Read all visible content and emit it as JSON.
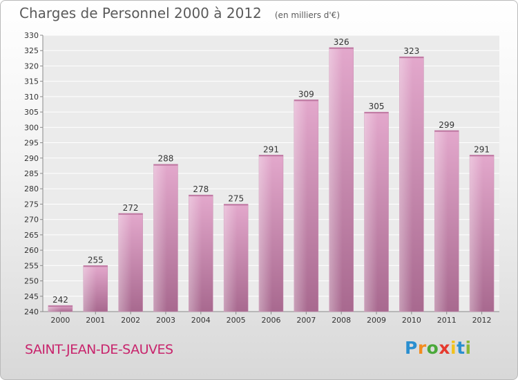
{
  "chart_data": {
    "type": "bar",
    "title": "Charges de Personnel 2000 à 2012",
    "subtitle": "(en milliers d'€)",
    "categories": [
      "2000",
      "2001",
      "2002",
      "2003",
      "2004",
      "2005",
      "2006",
      "2007",
      "2008",
      "2009",
      "2010",
      "2011",
      "2012"
    ],
    "values": [
      242,
      255,
      272,
      288,
      278,
      275,
      291,
      309,
      326,
      305,
      323,
      299,
      291
    ],
    "ylim": [
      240,
      330
    ],
    "yticks": [
      240,
      245,
      250,
      255,
      260,
      265,
      270,
      275,
      280,
      285,
      290,
      295,
      300,
      305,
      310,
      315,
      320,
      325,
      330
    ],
    "grid": true,
    "bar_color": "#d891bd",
    "xlabel": "",
    "ylabel": ""
  },
  "footer": {
    "commune": "SAINT-JEAN-DE-SAUVES",
    "logo": {
      "letters": [
        "P",
        "r",
        "o",
        "x",
        "i",
        "t",
        "i"
      ],
      "colors": [
        "#2a8fd0",
        "#f28c1f",
        "#4aa83a",
        "#e63a2e",
        "#f2c21d",
        "#2a8fd0",
        "#8ab834"
      ]
    }
  }
}
